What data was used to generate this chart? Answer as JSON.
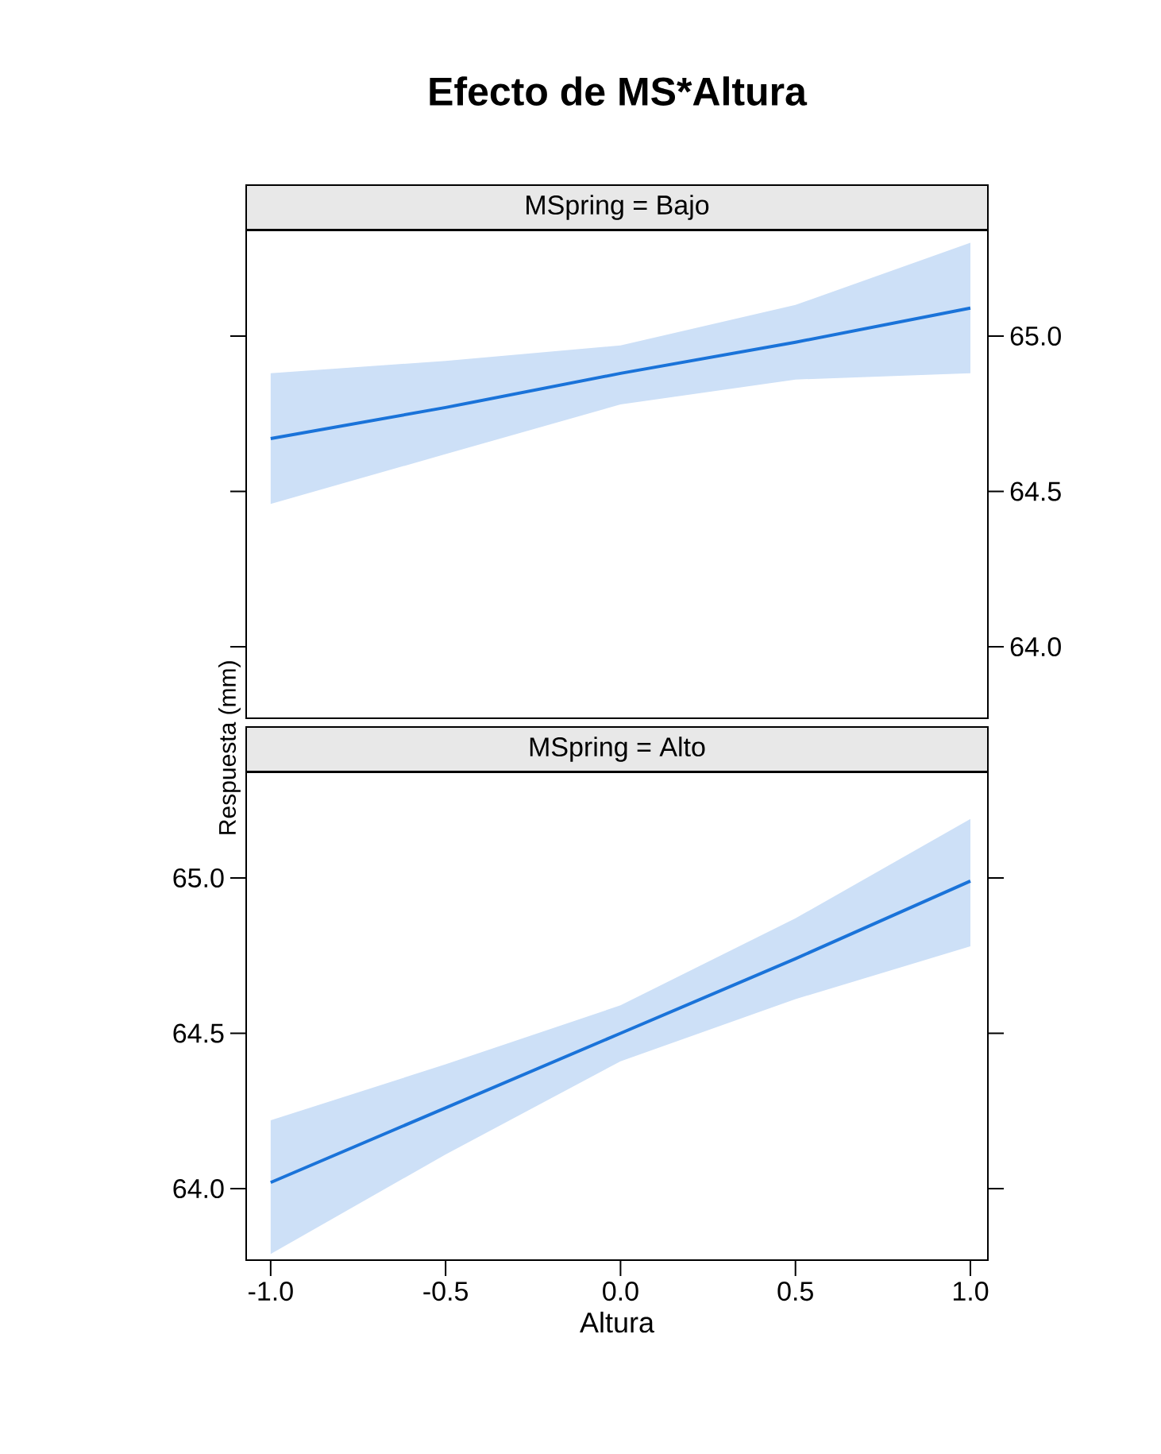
{
  "chart_data": [
    {
      "type": "line",
      "title": "Efecto de MS*Altura",
      "subtitle": "MSpring = Bajo",
      "x": [
        -1,
        -0.5,
        0,
        0.5,
        1
      ],
      "series": [
        {
          "color": "#1a73d9",
          "values": [
            64.67,
            64.77,
            64.88,
            64.98,
            65.09
          ],
          "lower": [
            64.46,
            64.62,
            64.78,
            64.86,
            64.88
          ],
          "upper": [
            64.88,
            64.92,
            64.97,
            65.1,
            65.3
          ]
        }
      ],
      "xlim": [
        -1.07,
        1.05
      ],
      "xticks": [
        {
          "value": -1,
          "label": null
        },
        {
          "value": -0.5,
          "label": null
        },
        {
          "value": 0,
          "label": null
        },
        {
          "value": 0.5,
          "label": null
        },
        {
          "value": 1,
          "label": null
        }
      ],
      "ylim": [
        63.77,
        65.34
      ],
      "yticks": [
        {
          "value": 64,
          "label": "64.0"
        },
        {
          "value": 64.5,
          "label": "64.5"
        },
        {
          "value": 65,
          "label": "65.0"
        }
      ],
      "tick_labels": "y"
    },
    {
      "type": "line",
      "subtitle": "MSpring = Alto",
      "xlabel": "Altura",
      "ylabel": "Respuesta (mm)",
      "x": [
        -1,
        -0.5,
        0,
        0.5,
        1
      ],
      "series": [
        {
          "color": "#1a73d9",
          "values": [
            64.02,
            64.26,
            64.5,
            64.74,
            64.99
          ],
          "lower": [
            63.79,
            64.11,
            64.41,
            64.61,
            64.78
          ],
          "upper": [
            64.22,
            64.4,
            64.59,
            64.87,
            65.19
          ]
        }
      ],
      "xlim": [
        -1.07,
        1.05
      ],
      "xticks": [
        {
          "value": -1,
          "label": "-1.0"
        },
        {
          "value": -0.5,
          "label": "-0.5"
        },
        {
          "value": 0,
          "label": "0.0"
        },
        {
          "value": 0.5,
          "label": "0.5"
        },
        {
          "value": 1,
          "label": "1.0"
        }
      ],
      "ylim": [
        63.77,
        65.34
      ],
      "yticks": [
        {
          "value": 64,
          "label": "64.0"
        },
        {
          "value": 64.5,
          "label": "64.5"
        },
        {
          "value": 65,
          "label": "65.0"
        }
      ]
    }
  ]
}
